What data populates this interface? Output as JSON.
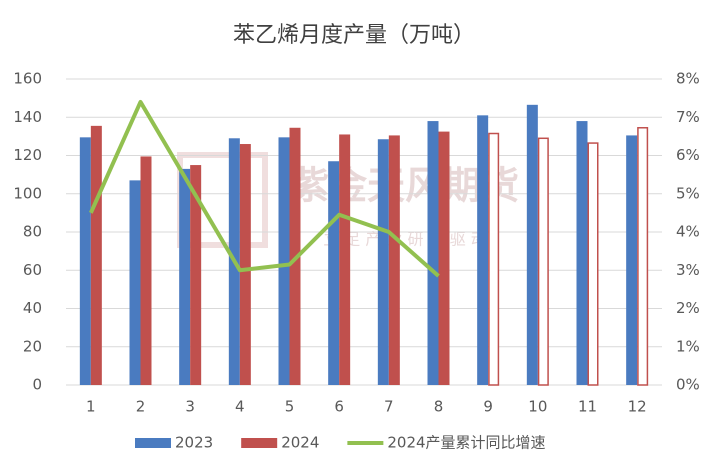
{
  "chart_data": {
    "type": "bar_line",
    "title": "苯乙烯月度产量（万吨）",
    "watermark": {
      "main": "紫金天风期货",
      "sub": "立 足 产 业   研 究 驱 动"
    },
    "categories": [
      "1",
      "2",
      "3",
      "4",
      "5",
      "6",
      "7",
      "8",
      "9",
      "10",
      "11",
      "12"
    ],
    "series": [
      {
        "name": "2023",
        "color": "#4a7bc0",
        "type": "bar",
        "values": [
          129.5,
          107,
          113,
          129,
          129.5,
          117,
          128.5,
          138,
          141,
          146.5,
          138,
          130.5
        ]
      },
      {
        "name": "2024",
        "color": "#c0504d",
        "type": "bar",
        "values": [
          135.5,
          119.5,
          115,
          126,
          134.5,
          131,
          130.5,
          132.5,
          131.5,
          129,
          126.5,
          134.5
        ],
        "outline_only": [
          false,
          false,
          false,
          false,
          false,
          false,
          false,
          false,
          true,
          true,
          true,
          true
        ]
      },
      {
        "name": "2024产量累计同比增速",
        "color": "#92c050",
        "type": "line",
        "axis": "y2",
        "values": [
          4.5,
          7.4,
          5.2,
          3.0,
          3.15,
          4.45,
          4.0,
          2.85,
          null,
          null,
          null,
          null
        ]
      }
    ],
    "ylim": [
      0,
      160
    ],
    "yticks": [
      0,
      20,
      40,
      60,
      80,
      100,
      120,
      140,
      160
    ],
    "y2lim": [
      0,
      8
    ],
    "y2ticks": [
      {
        "value": 0,
        "label": "0%"
      },
      {
        "value": 1,
        "label": "1%"
      },
      {
        "value": 2,
        "label": "2%"
      },
      {
        "value": 3,
        "label": "3%"
      },
      {
        "value": 4,
        "label": "4%"
      },
      {
        "value": 5,
        "label": "5%"
      },
      {
        "value": 6,
        "label": "6%"
      },
      {
        "value": 7,
        "label": "7%"
      },
      {
        "value": 8,
        "label": "8%"
      }
    ],
    "grid": true,
    "legend": "bottom"
  }
}
